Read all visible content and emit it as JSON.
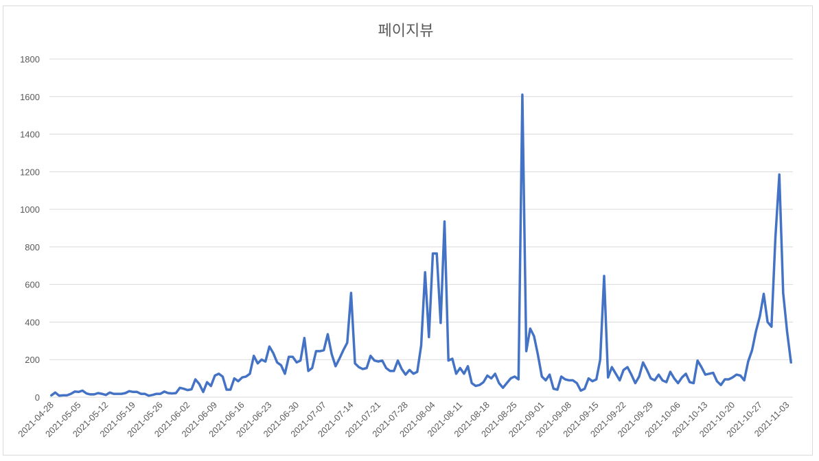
{
  "chart_data": {
    "type": "line",
    "title": "페이지뷰",
    "xlabel": "",
    "ylabel": "",
    "ylim": [
      0,
      1800
    ],
    "yticks": [
      0,
      200,
      400,
      600,
      800,
      1000,
      1200,
      1400,
      1600,
      1800
    ],
    "x_tick_labels": [
      "2021-04-28",
      "2021-05-05",
      "2021-05-12",
      "2021-05-19",
      "2021-05-26",
      "2021-06-02",
      "2021-06-09",
      "2021-06-16",
      "2021-06-23",
      "2021-06-30",
      "2021-07-07",
      "2021-07-14",
      "2021-07-21",
      "2021-07-28",
      "2021-08-04",
      "2021-08-11",
      "2021-08-18",
      "2021-08-25",
      "2021-09-01",
      "2021-09-08",
      "2021-09-15",
      "2021-09-22",
      "2021-09-29",
      "2021-10-06",
      "2021-10-13",
      "2021-10-20",
      "2021-10-27",
      "2021-11-03"
    ],
    "x_start": "2021-04-28",
    "x_end": "2021-11-04",
    "grid": true,
    "legend": "none",
    "series": [
      {
        "color": "#4472c4",
        "values": [
          10,
          25,
          8,
          10,
          10,
          18,
          30,
          28,
          35,
          20,
          15,
          15,
          22,
          18,
          12,
          25,
          18,
          18,
          18,
          22,
          32,
          28,
          28,
          18,
          18,
          8,
          12,
          18,
          18,
          30,
          22,
          20,
          22,
          50,
          45,
          38,
          42,
          95,
          70,
          28,
          80,
          60,
          115,
          125,
          110,
          40,
          40,
          100,
          85,
          105,
          110,
          125,
          220,
          180,
          200,
          190,
          270,
          235,
          185,
          170,
          125,
          215,
          215,
          185,
          195,
          315,
          140,
          155,
          245,
          245,
          250,
          335,
          230,
          165,
          205,
          250,
          290,
          555,
          180,
          160,
          150,
          155,
          220,
          195,
          190,
          195,
          155,
          140,
          140,
          195,
          150,
          120,
          145,
          125,
          135,
          275,
          665,
          320,
          765,
          765,
          395,
          935,
          195,
          205,
          125,
          155,
          125,
          165,
          75,
          60,
          65,
          80,
          115,
          100,
          125,
          75,
          50,
          75,
          100,
          110,
          95,
          1610,
          245,
          365,
          325,
          225,
          110,
          90,
          120,
          45,
          40,
          110,
          95,
          90,
          90,
          75,
          35,
          45,
          100,
          85,
          95,
          200,
          645,
          105,
          160,
          125,
          90,
          145,
          160,
          120,
          75,
          110,
          185,
          145,
          100,
          90,
          120,
          90,
          80,
          135,
          100,
          75,
          105,
          125,
          80,
          75,
          195,
          160,
          120,
          125,
          130,
          85,
          65,
          95,
          95,
          105,
          120,
          115,
          90,
          190,
          250,
          350,
          430,
          550,
          400,
          375,
          850,
          1185,
          555,
          350,
          185
        ]
      }
    ]
  }
}
